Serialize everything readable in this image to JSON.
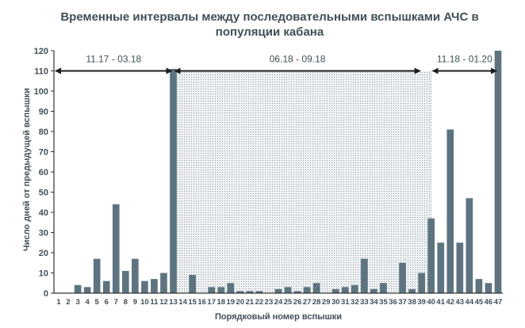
{
  "chart_data": {
    "type": "bar",
    "title_line1": "Временные интервалы между последовательными вспышками АЧС в",
    "title_line2": "популяции кабана",
    "xlabel": "Порядковый номер вспышки",
    "ylabel": "Число дней от предыдущей вспышки",
    "ylim": [
      0,
      120
    ],
    "yticks": [
      0,
      10,
      20,
      30,
      40,
      50,
      60,
      70,
      80,
      90,
      100,
      110,
      120
    ],
    "categories": [
      "1",
      "2",
      "3",
      "4",
      "5",
      "6",
      "7",
      "8",
      "9",
      "10",
      "11",
      "12",
      "13",
      "14",
      "15",
      "16",
      "17",
      "18",
      "19",
      "20",
      "21",
      "22",
      "23",
      "24",
      "25",
      "26",
      "27",
      "28",
      "29",
      "30",
      "31",
      "32",
      "33",
      "34",
      "35",
      "36",
      "37",
      "38",
      "39",
      "40",
      "41",
      "42",
      "43",
      "44",
      "45",
      "46",
      "47"
    ],
    "values": [
      0,
      0,
      4,
      3,
      17,
      6,
      44,
      11,
      17,
      6,
      7,
      10,
      111,
      0,
      9,
      0,
      3,
      3,
      5,
      1,
      1,
      1,
      0,
      2,
      3,
      1,
      3,
      5,
      0,
      2,
      3,
      4,
      17,
      2,
      5,
      0,
      15,
      2,
      10,
      37,
      25,
      81,
      25,
      47,
      7,
      5,
      120
    ],
    "bar_color": "#5d7480",
    "periods": [
      {
        "label": "11.17 - 03.18",
        "from": 1,
        "to": 13
      },
      {
        "label": "06.18 - 09.18",
        "from": 13,
        "to": 39
      },
      {
        "label": "11.18 - 01.20",
        "from": 40,
        "to": 47
      }
    ],
    "shaded_range": {
      "from": 13,
      "to": 40
    }
  }
}
